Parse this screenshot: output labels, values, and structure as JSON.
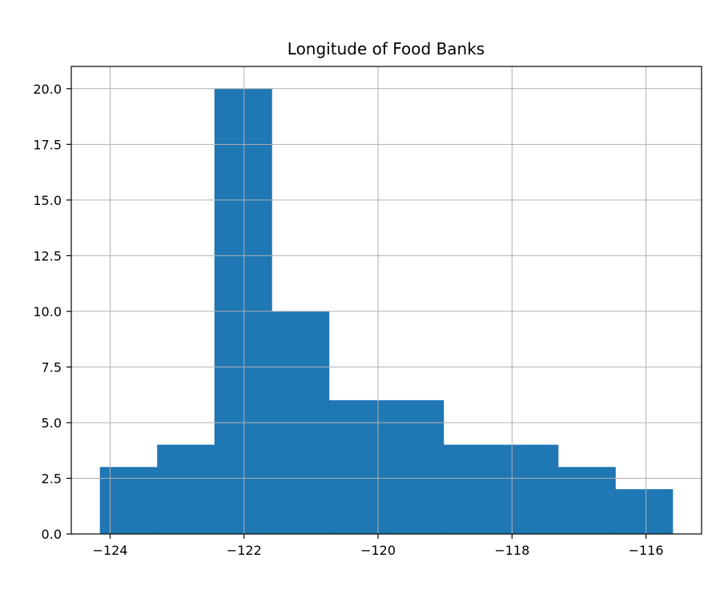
{
  "chart_data": {
    "type": "bar",
    "title": "Longitude of Food Banks",
    "xlabel": "",
    "ylabel": "",
    "bins": [
      {
        "x0": -124.15,
        "x1": -123.295,
        "count": 3
      },
      {
        "x0": -123.295,
        "x1": -122.44,
        "count": 4
      },
      {
        "x0": -122.44,
        "x1": -121.585,
        "count": 20
      },
      {
        "x0": -121.585,
        "x1": -120.73,
        "count": 10
      },
      {
        "x0": -120.73,
        "x1": -119.875,
        "count": 6
      },
      {
        "x0": -119.875,
        "x1": -119.02,
        "count": 6
      },
      {
        "x0": -119.02,
        "x1": -118.165,
        "count": 4
      },
      {
        "x0": -118.165,
        "x1": -117.31,
        "count": 4
      },
      {
        "x0": -117.31,
        "x1": -116.455,
        "count": 3
      },
      {
        "x0": -116.455,
        "x1": -115.6,
        "count": 2
      }
    ],
    "xlim": [
      -124.58,
      -115.17
    ],
    "ylim": [
      0,
      21
    ],
    "xticks": [
      -124,
      -122,
      -120,
      -118,
      -116
    ],
    "xtick_labels": [
      "−124",
      "−122",
      "−120",
      "−118",
      "−116"
    ],
    "yticks": [
      0,
      2.5,
      5,
      7.5,
      10,
      12.5,
      15,
      17.5,
      20
    ],
    "ytick_labels": [
      "0.0",
      "2.5",
      "5.0",
      "7.5",
      "10.0",
      "12.5",
      "15.0",
      "17.5",
      "20.0"
    ],
    "grid": true,
    "bar_color": "#1f77b4",
    "grid_color": "#b0b0b0"
  }
}
